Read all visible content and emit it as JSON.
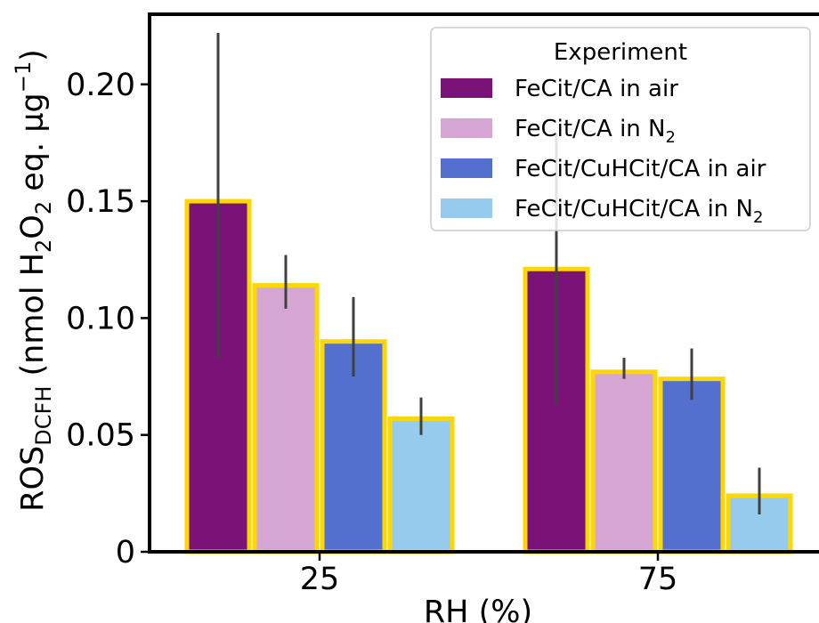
{
  "chart_data": {
    "type": "bar",
    "categories": [
      "25",
      "75"
    ],
    "xlabel": "RH (%)",
    "ylabel": {
      "prefix": "ROS",
      "subscript": "DCFH",
      "text": " (nmol H",
      "h_sub": "2",
      "o_text": "O",
      "o_sub": "2",
      "tail": " eq. µg",
      "sup": "−1",
      "close": ")"
    },
    "ylim": [
      0,
      0.23
    ],
    "yticks": [
      {
        "value": 0,
        "label": "0"
      },
      {
        "value": 0.05,
        "label": "0.05"
      },
      {
        "value": 0.1,
        "label": "0.10"
      },
      {
        "value": 0.15,
        "label": "0.15"
      },
      {
        "value": 0.2,
        "label": "0.20"
      }
    ],
    "bar_edge_color": "#FFD700",
    "errorbar_color": "#404040",
    "legend": {
      "title": "Experiment",
      "position": "top-right"
    },
    "series": [
      {
        "name": "FeCit/CA in air",
        "color": "#7B1277",
        "values": [
          0.15,
          0.121
        ],
        "err_low": [
          0.083,
          0.063
        ],
        "err_high": [
          0.222,
          0.179
        ]
      },
      {
        "name": "FeCit/CA in N",
        "name_sub": "2",
        "color": "#D5A6D4",
        "values": [
          0.114,
          0.077
        ],
        "err_low": [
          0.104,
          0.074
        ],
        "err_high": [
          0.127,
          0.083
        ]
      },
      {
        "name": "FeCit/CuHCit/CA in air",
        "color": "#5470CE",
        "values": [
          0.09,
          0.074
        ],
        "err_low": [
          0.075,
          0.065
        ],
        "err_high": [
          0.109,
          0.087
        ]
      },
      {
        "name": "FeCit/CuHCit/CA in N",
        "name_sub": "2",
        "color": "#97CBEE",
        "values": [
          0.057,
          0.024
        ],
        "err_low": [
          0.05,
          0.016
        ],
        "err_high": [
          0.066,
          0.036
        ]
      }
    ]
  }
}
